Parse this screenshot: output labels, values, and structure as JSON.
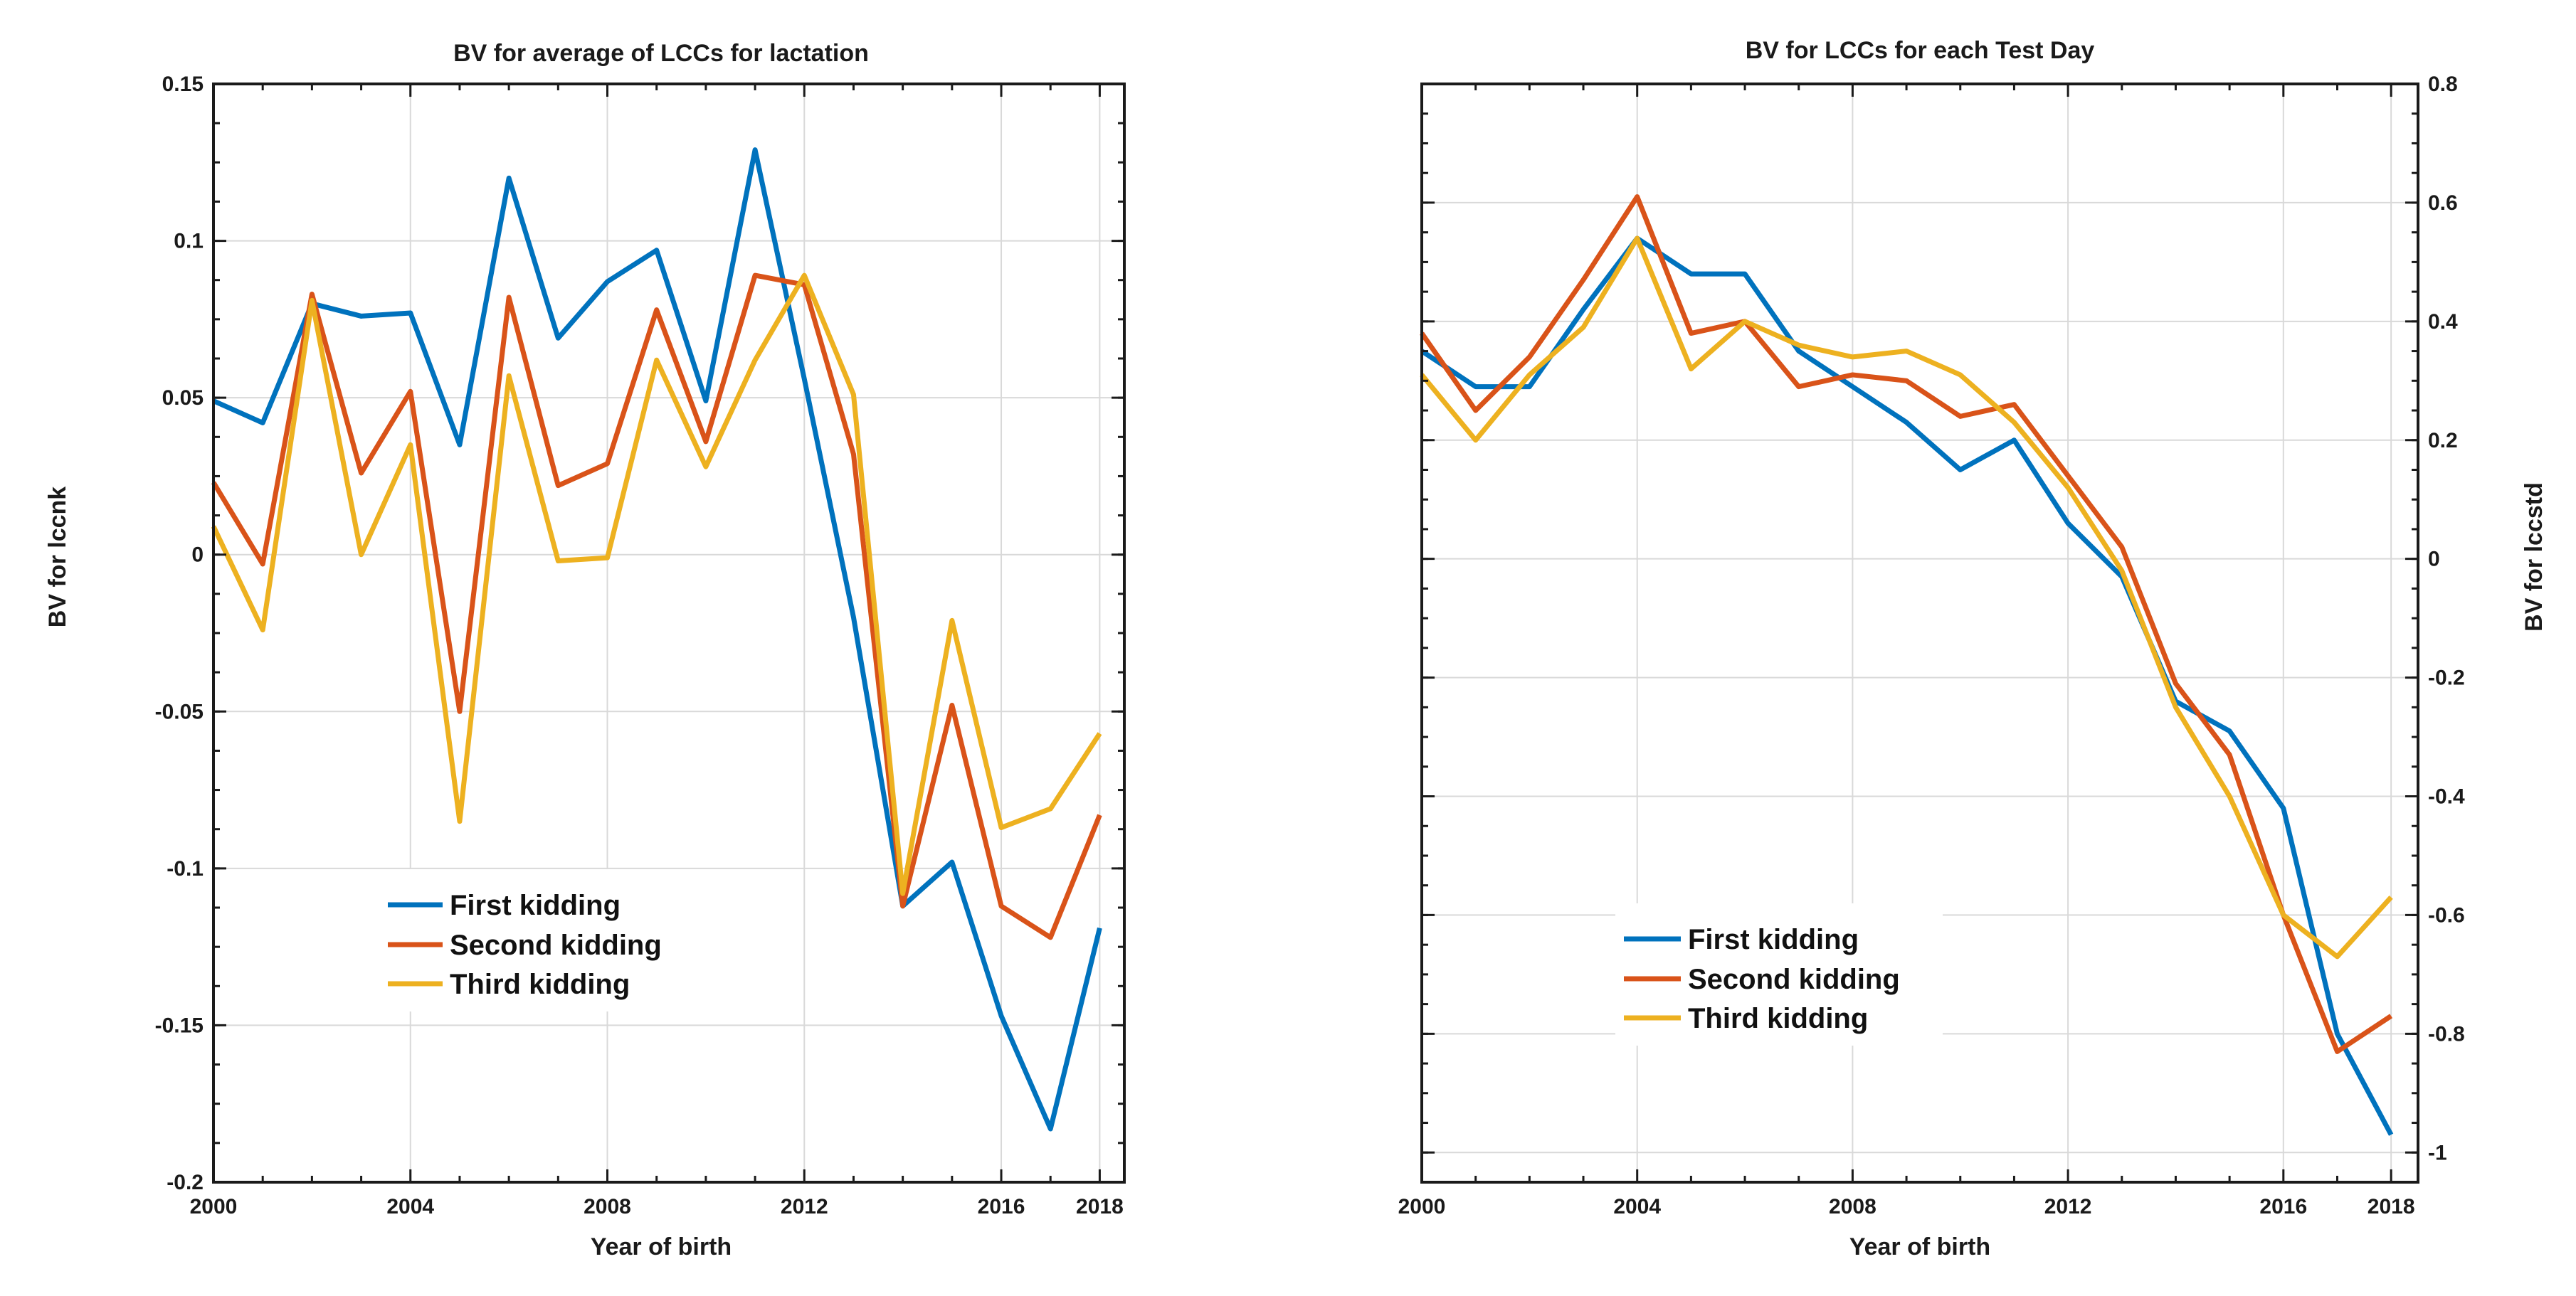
{
  "chart_data": [
    {
      "type": "line",
      "title": "BV for average of LCCs for lactation",
      "xlabel": "Year of birth",
      "ylabel": "BV for lccnk",
      "yaxis_side": "left",
      "legend_position": "lower-left",
      "grid": true,
      "xlim": [
        2000,
        2018.5
      ],
      "ylim": [
        -0.2,
        0.15
      ],
      "xticks": [
        2000,
        2004,
        2008,
        2012,
        2016,
        2018
      ],
      "xtick_labels": [
        "2000",
        "2004",
        "2008",
        "2012",
        "2016",
        "2018"
      ],
      "yticks": [
        0.15,
        0.1,
        0.05,
        0,
        -0.05,
        -0.1,
        -0.15,
        -0.2
      ],
      "ytick_labels": [
        "0.15",
        "0.1",
        "0.05",
        "0",
        "-0.05",
        "-0.1",
        "-0.15",
        "-0.2"
      ],
      "x": [
        2000,
        2001,
        2002,
        2003,
        2004,
        2005,
        2006,
        2007,
        2008,
        2009,
        2010,
        2011,
        2012,
        2013,
        2014,
        2015,
        2016,
        2017,
        2018
      ],
      "series": [
        {
          "name": "First kidding",
          "color": "#0072BD",
          "values": [
            0.049,
            0.042,
            0.08,
            0.076,
            0.077,
            0.035,
            0.12,
            0.069,
            0.087,
            0.097,
            0.049,
            0.129,
            0.056,
            -0.02,
            -0.112,
            -0.098,
            -0.147,
            -0.183,
            -0.119
          ]
        },
        {
          "name": "Second kidding",
          "color": "#D95319",
          "values": [
            0.023,
            -0.003,
            0.083,
            0.026,
            0.052,
            -0.05,
            0.082,
            0.022,
            0.029,
            0.078,
            0.036,
            0.089,
            0.086,
            0.032,
            -0.112,
            -0.048,
            -0.112,
            -0.122,
            -0.083
          ]
        },
        {
          "name": "Third kidding",
          "color": "#EDB120",
          "values": [
            0.009,
            -0.024,
            0.081,
            0.0,
            0.035,
            -0.085,
            0.057,
            -0.002,
            -0.001,
            0.062,
            0.028,
            0.062,
            0.089,
            0.051,
            -0.108,
            -0.021,
            -0.087,
            -0.081,
            -0.057
          ]
        }
      ]
    },
    {
      "type": "line",
      "title": "BV for LCCs for each Test Day",
      "xlabel": "Year of birth",
      "ylabel": "BV for lccstd",
      "yaxis_side": "right",
      "legend_position": "lower-left",
      "grid": true,
      "xlim": [
        2000,
        2018.5
      ],
      "ylim": [
        -1.05,
        0.8
      ],
      "xticks": [
        2000,
        2004,
        2008,
        2012,
        2016,
        2018
      ],
      "xtick_labels": [
        "2000",
        "2004",
        "2008",
        "2012",
        "2016",
        "2018"
      ],
      "yticks": [
        0.8,
        0.6,
        0.4,
        0.2,
        0,
        -0.2,
        -0.4,
        -0.6,
        -0.8,
        -1
      ],
      "ytick_labels": [
        "0.8",
        "0.6",
        "0.4",
        "0.2",
        "0",
        "-0.2",
        "-0.4",
        "-0.6",
        "-0.8",
        "-1"
      ],
      "x": [
        2000,
        2001,
        2002,
        2003,
        2004,
        2005,
        2006,
        2007,
        2008,
        2009,
        2010,
        2011,
        2012,
        2013,
        2014,
        2015,
        2016,
        2017,
        2018
      ],
      "series": [
        {
          "name": "First kidding",
          "color": "#0072BD",
          "values": [
            0.35,
            0.29,
            0.29,
            0.42,
            0.54,
            0.48,
            0.48,
            0.35,
            0.29,
            0.23,
            0.15,
            0.2,
            0.06,
            -0.03,
            -0.24,
            -0.29,
            -0.42,
            -0.8,
            -0.97
          ]
        },
        {
          "name": "Second kidding",
          "color": "#D95319",
          "values": [
            0.38,
            0.25,
            0.34,
            0.47,
            0.61,
            0.38,
            0.4,
            0.29,
            0.31,
            0.3,
            0.24,
            0.26,
            0.14,
            0.02,
            -0.21,
            -0.33,
            -0.6,
            -0.83,
            -0.77
          ]
        },
        {
          "name": "Third kidding",
          "color": "#EDB120",
          "values": [
            0.31,
            0.2,
            0.31,
            0.39,
            0.54,
            0.32,
            0.4,
            0.36,
            0.34,
            0.35,
            0.31,
            0.23,
            0.12,
            -0.02,
            -0.25,
            -0.4,
            -0.6,
            -0.67,
            -0.57
          ]
        }
      ]
    }
  ]
}
